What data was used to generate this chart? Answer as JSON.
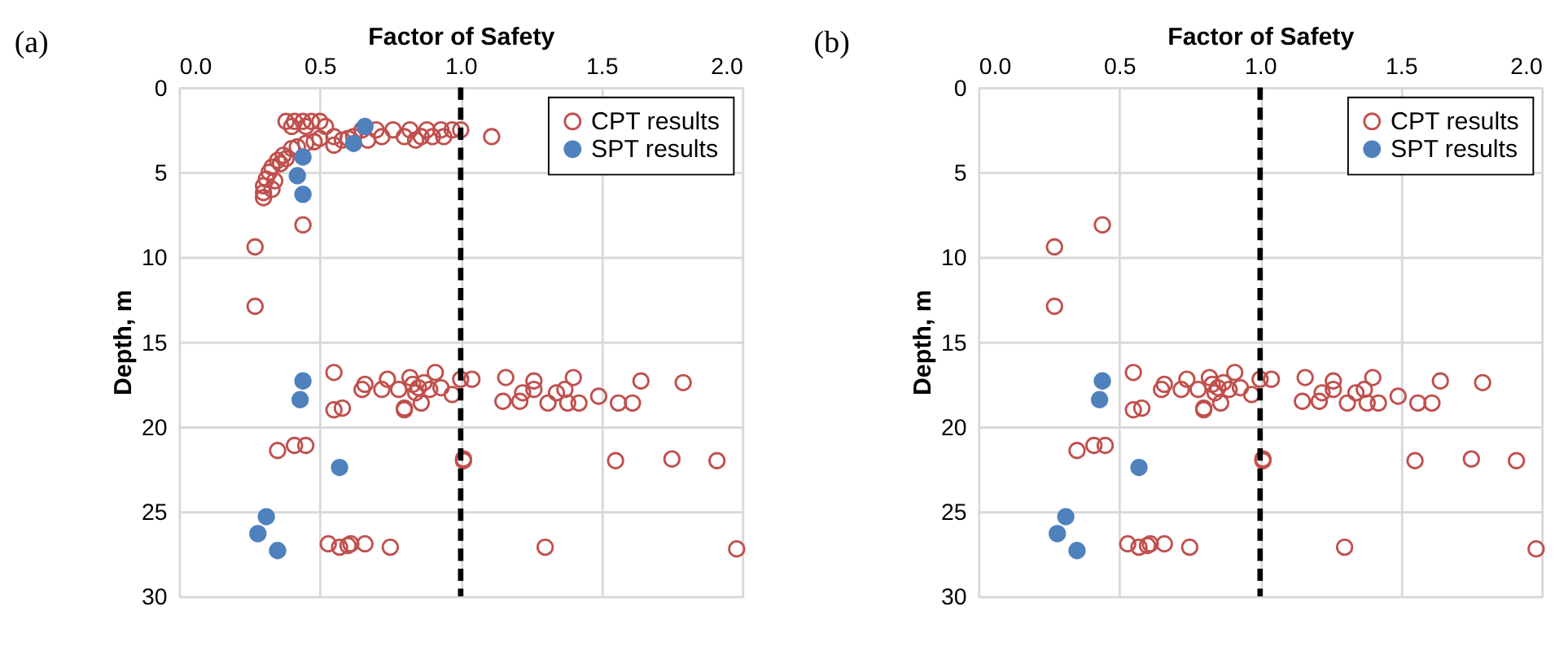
{
  "chart_data": [
    {
      "type": "scatter",
      "title": "(a)",
      "xlabel": "Factor of Safety",
      "ylabel": "Depth, m",
      "xlim": [
        0,
        2
      ],
      "xticks": [
        {
          "value": 0,
          "label": "0.0"
        },
        {
          "value": 0.5,
          "label": "0.5"
        },
        {
          "value": 1,
          "label": "1.0"
        },
        {
          "value": 1.5,
          "label": "1.5"
        },
        {
          "value": 2,
          "label": "2.0"
        }
      ],
      "ylim": [
        30,
        0
      ],
      "yticks": [
        0,
        5,
        10,
        15,
        20,
        25,
        30
      ],
      "grid": true,
      "legend": "top right",
      "marker": "circle",
      "ref_lines": [
        {
          "axis": "x",
          "value": 1,
          "color": "#000000",
          "line_style": "dashed"
        }
      ],
      "series": [
        {
          "name": "CPT results",
          "color": "#c0504d",
          "x": [
            0.38,
            0.41,
            0.44,
            0.47,
            0.5,
            0.4,
            0.45,
            0.52,
            0.65,
            0.7,
            0.76,
            0.82,
            0.88,
            0.93,
            0.97,
            1.0,
            0.55,
            0.62,
            0.72,
            0.8,
            0.86,
            0.9,
            0.94,
            1.11,
            0.58,
            0.67,
            0.84,
            0.5,
            0.45,
            0.4,
            0.37,
            0.35,
            0.33,
            0.32,
            0.31,
            0.3,
            0.3,
            0.3,
            0.36,
            0.34,
            0.33,
            0.38,
            0.42,
            0.48,
            0.55,
            0.6,
            0.55,
            0.66,
            0.65,
            0.72,
            0.74,
            0.78,
            0.82,
            0.83,
            0.85,
            0.84,
            0.87,
            0.91,
            0.89,
            0.93,
            0.97,
            1.0,
            1.04,
            0.8,
            0.8,
            0.86,
            0.55,
            0.58,
            1.16,
            1.15,
            1.21,
            1.22,
            1.26,
            1.26,
            1.31,
            1.34,
            1.37,
            1.38,
            1.42,
            1.4,
            1.49,
            1.56,
            1.61,
            1.64,
            1.79,
            0.35,
            0.41,
            0.45,
            1.01,
            1.01,
            1.55,
            1.75,
            1.91,
            0.53,
            0.57,
            0.6,
            0.61,
            0.66,
            0.75,
            1.3,
            1.98,
            0.44,
            0.27,
            0.27
          ],
          "values": [
            2.0,
            2.0,
            2.0,
            2.0,
            2.0,
            2.3,
            2.3,
            2.3,
            2.5,
            2.5,
            2.5,
            2.5,
            2.5,
            2.5,
            2.5,
            2.5,
            2.9,
            2.9,
            2.9,
            2.9,
            2.9,
            2.9,
            2.9,
            2.9,
            3.1,
            3.1,
            3.1,
            3.0,
            3.3,
            3.6,
            4.0,
            4.3,
            4.7,
            5.0,
            5.4,
            5.8,
            6.2,
            6.5,
            4.5,
            5.5,
            6.0,
            4.2,
            3.5,
            3.2,
            3.4,
            3.0,
            16.8,
            17.5,
            17.8,
            17.8,
            17.2,
            17.8,
            17.1,
            17.5,
            17.7,
            18.0,
            17.4,
            16.8,
            17.8,
            17.7,
            18.1,
            17.2,
            17.2,
            18.9,
            19.0,
            18.6,
            19.0,
            18.9,
            17.1,
            18.5,
            18.5,
            18.0,
            17.8,
            17.3,
            18.6,
            18.0,
            17.8,
            18.6,
            18.6,
            17.1,
            18.2,
            18.6,
            18.6,
            17.3,
            17.4,
            21.4,
            21.1,
            21.1,
            22.0,
            21.9,
            22.0,
            21.9,
            22.0,
            26.9,
            27.1,
            27.0,
            26.9,
            26.9,
            27.1,
            27.1,
            27.2,
            8.1,
            9.4,
            12.9
          ]
        },
        {
          "name": "SPT results",
          "color": "#4f81bd",
          "x": [
            0.66,
            0.62,
            0.44,
            0.42,
            0.44,
            0.44,
            0.43,
            0.57,
            0.31,
            0.28,
            0.35
          ],
          "values": [
            2.3,
            3.3,
            4.1,
            5.2,
            6.3,
            17.3,
            18.4,
            22.4,
            25.3,
            26.3,
            27.3
          ]
        }
      ]
    },
    {
      "type": "scatter",
      "title": "(b)",
      "xlabel": "Factor of Safety",
      "ylabel": "Depth, m",
      "xlim": [
        0,
        2
      ],
      "xticks": [
        {
          "value": 0,
          "label": "0.0"
        },
        {
          "value": 0.5,
          "label": "0.5"
        },
        {
          "value": 1,
          "label": "1.0"
        },
        {
          "value": 1.5,
          "label": "1.5"
        },
        {
          "value": 2,
          "label": "2.0"
        }
      ],
      "ylim": [
        30,
        0
      ],
      "yticks": [
        0,
        5,
        10,
        15,
        20,
        25,
        30
      ],
      "grid": true,
      "legend": "top right",
      "marker": "circle",
      "ref_lines": [
        {
          "axis": "x",
          "value": 1,
          "color": "#000000",
          "line_style": "dashed"
        }
      ],
      "series": [
        {
          "name": "CPT results",
          "color": "#c0504d",
          "x": [
            0.55,
            0.66,
            0.65,
            0.72,
            0.74,
            0.78,
            0.82,
            0.83,
            0.85,
            0.84,
            0.87,
            0.91,
            0.89,
            0.93,
            0.97,
            1.0,
            1.04,
            0.8,
            0.8,
            0.86,
            0.55,
            0.58,
            1.16,
            1.15,
            1.21,
            1.22,
            1.26,
            1.26,
            1.31,
            1.34,
            1.37,
            1.38,
            1.42,
            1.4,
            1.49,
            1.56,
            1.61,
            1.64,
            1.79,
            0.35,
            0.41,
            0.45,
            1.01,
            1.01,
            1.55,
            1.75,
            1.91,
            0.53,
            0.57,
            0.6,
            0.61,
            0.66,
            0.75,
            1.3,
            1.98,
            0.44,
            0.27,
            0.27
          ],
          "values": [
            16.8,
            17.5,
            17.8,
            17.8,
            17.2,
            17.8,
            17.1,
            17.5,
            17.7,
            18.0,
            17.4,
            16.8,
            17.8,
            17.7,
            18.1,
            17.2,
            17.2,
            18.9,
            19.0,
            18.6,
            19.0,
            18.9,
            17.1,
            18.5,
            18.5,
            18.0,
            17.8,
            17.3,
            18.6,
            18.0,
            17.8,
            18.6,
            18.6,
            17.1,
            18.2,
            18.6,
            18.6,
            17.3,
            17.4,
            21.4,
            21.1,
            21.1,
            22.0,
            21.9,
            22.0,
            21.9,
            22.0,
            26.9,
            27.1,
            27.0,
            26.9,
            26.9,
            27.1,
            27.1,
            27.2,
            8.1,
            9.4,
            12.9
          ]
        },
        {
          "name": "SPT results",
          "color": "#4f81bd",
          "x": [
            0.44,
            0.43,
            0.57,
            0.31,
            0.28,
            0.35
          ],
          "values": [
            17.3,
            18.4,
            22.4,
            25.3,
            26.3,
            27.3
          ]
        }
      ]
    }
  ]
}
